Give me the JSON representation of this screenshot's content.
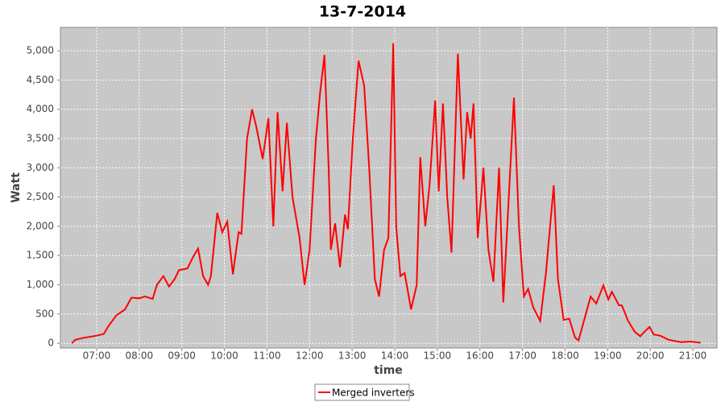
{
  "chart_data": {
    "type": "line",
    "title": "13-7-2014",
    "x_label": "time",
    "y_label": "Watt",
    "x": [
      "06:25",
      "06:30",
      "06:40",
      "06:50",
      "07:00",
      "07:10",
      "07:17",
      "07:28",
      "07:40",
      "07:49",
      "08:00",
      "08:08",
      "08:19",
      "08:25",
      "08:34",
      "08:42",
      "08:50",
      "08:56",
      "09:08",
      "09:16",
      "09:23",
      "09:30",
      "09:37",
      "09:41",
      "09:50",
      "09:57",
      "10:04",
      "10:12",
      "10:20",
      "10:24",
      "10:32",
      "10:39",
      "10:45",
      "10:54",
      "11:02",
      "11:09",
      "11:15",
      "11:22",
      "11:28",
      "11:36",
      "11:46",
      "11:53",
      "12:00",
      "12:09",
      "12:15",
      "12:21",
      "12:27",
      "12:30",
      "12:36",
      "12:43",
      "12:50",
      "12:54",
      "13:01",
      "13:09",
      "13:17",
      "13:24",
      "13:32",
      "13:38",
      "13:45",
      "13:51",
      "13:58",
      "14:02",
      "14:08",
      "14:14",
      "14:23",
      "14:31",
      "14:36",
      "14:43",
      "14:49",
      "14:57",
      "15:02",
      "15:08",
      "15:14",
      "15:20",
      "15:29",
      "15:37",
      "15:42",
      "15:47",
      "15:51",
      "15:57",
      "16:05",
      "16:12",
      "16:19",
      "16:27",
      "16:33",
      "16:39",
      "16:48",
      "16:55",
      "17:02",
      "17:08",
      "17:15",
      "17:25",
      "17:33",
      "17:44",
      "17:50",
      "17:58",
      "18:06",
      "18:14",
      "18:19",
      "18:27",
      "18:36",
      "18:44",
      "18:54",
      "19:01",
      "19:06",
      "19:16",
      "19:20",
      "19:29",
      "19:38",
      "19:46",
      "19:52",
      "19:59",
      "20:05",
      "20:14",
      "20:26",
      "20:43",
      "20:57",
      "21:11"
    ],
    "series": [
      {
        "name": "Merged inverters",
        "color": "#ff0000",
        "values": [
          0,
          60,
          90,
          110,
          130,
          160,
          300,
          480,
          580,
          780,
          770,
          800,
          760,
          1000,
          1150,
          970,
          1100,
          1250,
          1280,
          1480,
          1620,
          1150,
          1000,
          1150,
          2230,
          1900,
          2080,
          1180,
          1900,
          1870,
          3500,
          4000,
          3700,
          3150,
          3850,
          2000,
          3950,
          2600,
          3770,
          2500,
          1800,
          1000,
          1600,
          3500,
          4300,
          4930,
          3000,
          1600,
          2050,
          1300,
          2200,
          1950,
          3500,
          4830,
          4400,
          3000,
          1100,
          800,
          1600,
          1800,
          5130,
          2000,
          1150,
          1200,
          580,
          1000,
          3180,
          2000,
          2700,
          4150,
          2600,
          4100,
          2500,
          1550,
          4950,
          2800,
          3950,
          3500,
          4100,
          1800,
          3000,
          1600,
          1050,
          3000,
          700,
          2100,
          4200,
          2000,
          800,
          930,
          620,
          380,
          1200,
          2700,
          1100,
          400,
          420,
          100,
          50,
          400,
          800,
          680,
          990,
          750,
          880,
          650,
          650,
          380,
          200,
          120,
          200,
          280,
          150,
          130,
          60,
          20,
          30,
          10
        ]
      }
    ],
    "xlim": [
      "06:09",
      "21:34"
    ],
    "xticks": [
      "07:00",
      "08:00",
      "09:00",
      "10:00",
      "11:00",
      "12:00",
      "13:00",
      "14:00",
      "15:00",
      "16:00",
      "17:00",
      "18:00",
      "19:00",
      "20:00",
      "21:00"
    ],
    "ylim": [
      -80,
      5400
    ],
    "yticks": [
      0,
      500,
      {
        "value": 1000,
        "label": "1,000"
      },
      {
        "value": 1500,
        "label": "1,500"
      },
      {
        "value": 2000,
        "label": "2,000"
      },
      {
        "value": 2500,
        "label": "2,500"
      },
      {
        "value": 3000,
        "label": "3,000"
      },
      {
        "value": 3500,
        "label": "3,500"
      },
      {
        "value": 4000,
        "label": "4,000"
      },
      {
        "value": 4500,
        "label": "4,500"
      },
      {
        "value": 5000,
        "label": "5,000"
      }
    ],
    "grid": true,
    "legend": "bottom"
  }
}
